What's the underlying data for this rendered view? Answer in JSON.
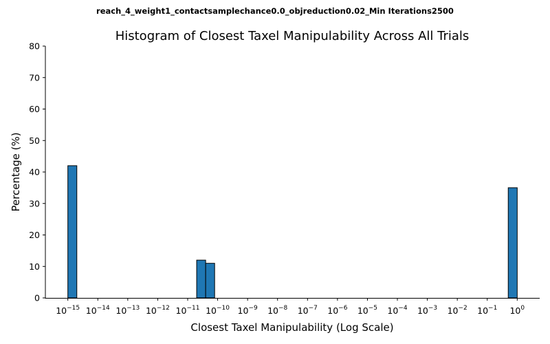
{
  "chart_data": {
    "type": "bar",
    "suptitle": "reach_4_weight1_contactsamplechance0.0_objreduction0.02_Min Iterations2500",
    "title": "Histogram of Closest Taxel Manipulability Across All Trials",
    "xlabel": "Closest Taxel Manipulability (Log Scale)",
    "ylabel": "Percentage (%)",
    "x_scale": "log",
    "xlim_log10": [
      -15.75,
      0.75
    ],
    "ylim": [
      0,
      80
    ],
    "y_ticks": [
      0,
      10,
      20,
      30,
      40,
      50,
      60,
      70,
      80
    ],
    "x_ticks": [
      {
        "base": "10",
        "exp": "−15",
        "log10": -15
      },
      {
        "base": "10",
        "exp": "−14",
        "log10": -14
      },
      {
        "base": "10",
        "exp": "−13",
        "log10": -13
      },
      {
        "base": "10",
        "exp": "−12",
        "log10": -12
      },
      {
        "base": "10",
        "exp": "−11",
        "log10": -11
      },
      {
        "base": "10",
        "exp": "−10",
        "log10": -10
      },
      {
        "base": "10",
        "exp": "−9",
        "log10": -9
      },
      {
        "base": "10",
        "exp": "−8",
        "log10": -8
      },
      {
        "base": "10",
        "exp": "−7",
        "log10": -7
      },
      {
        "base": "10",
        "exp": "−6",
        "log10": -6
      },
      {
        "base": "10",
        "exp": "−5",
        "log10": -5
      },
      {
        "base": "10",
        "exp": "−4",
        "log10": -4
      },
      {
        "base": "10",
        "exp": "−3",
        "log10": -3
      },
      {
        "base": "10",
        "exp": "−2",
        "log10": -2
      },
      {
        "base": "10",
        "exp": "−1",
        "log10": -1
      },
      {
        "base": "10",
        "exp": "0",
        "log10": 0
      }
    ],
    "bars": [
      {
        "x_from_log10": -15.0,
        "x_to_log10": -14.7,
        "value": 42
      },
      {
        "x_from_log10": -10.7,
        "x_to_log10": -10.4,
        "value": 12
      },
      {
        "x_from_log10": -10.4,
        "x_to_log10": -10.1,
        "value": 11
      },
      {
        "x_from_log10": -0.3,
        "x_to_log10": 0.0,
        "value": 35
      }
    ],
    "bar_color": "#1f77b4",
    "bar_edge_color": "#000000",
    "grid": false
  }
}
